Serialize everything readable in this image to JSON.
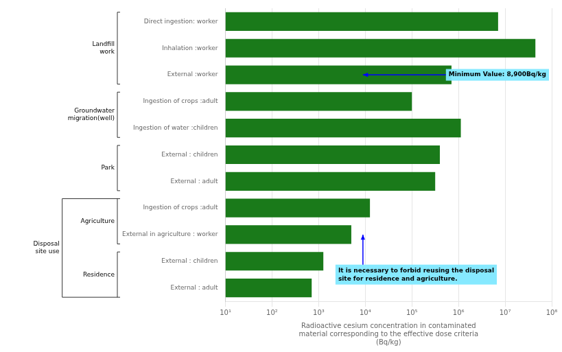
{
  "chart_data": {
    "type": "bar",
    "orientation": "horizontal",
    "categories": [
      "Direct ingestion: worker",
      "Inhalation :worker",
      "External :worker",
      "Ingestion of crops :adult",
      "Ingestion of water :children",
      "External : children",
      "External : adult",
      "Ingestion of crops :adult",
      "External in agriculture : worker",
      "External : children",
      "External : adult"
    ],
    "values": [
      7079457.8438,
      44668359.215,
      707945.78438,
      100000,
      1122018.4543,
      398107.17055,
      316227.76602,
      12589.254118,
      5011.8723363,
      1258.9254118,
      707.94578438
    ],
    "color": "#1a7a1a",
    "xlabel": "Radioactive cesium concentration in contaminated\nmaterial corresponding to the effective dose criteria\n(Bq/kg)",
    "log": "x",
    "xlim": [
      10,
      100000000
    ],
    "xticks": [
      {
        "value": 10,
        "label": "10¹"
      },
      {
        "value": 100,
        "label": "10²"
      },
      {
        "value": 1000,
        "label": "10³"
      },
      {
        "value": 10000,
        "label": "10⁴"
      },
      {
        "value": 100000,
        "label": "10⁵"
      },
      {
        "value": 1000000,
        "label": "10⁶"
      },
      {
        "value": 10000000,
        "label": "10⁷"
      },
      {
        "value": 100000000,
        "label": "10⁸"
      }
    ],
    "grid": true,
    "annotations": [
      {
        "text": "Minimum Value: 8,900Bq/kg",
        "x": 8900,
        "row": 2
      },
      {
        "text": "It is necessary to forbid reusing the disposal\nsite for residence and agriculture.",
        "x": 8900,
        "row": 8
      },
      {
        "text": "Landfill\nwork",
        "rows": [
          0,
          2
        ]
      },
      {
        "text": "Groundwater\nmigration(well)",
        "rows": [
          3,
          4
        ]
      },
      {
        "text": "Park",
        "rows": [
          5,
          6
        ]
      },
      {
        "text": "Agriculture",
        "rows": [
          7,
          8
        ]
      },
      {
        "text": "Residence",
        "rows": [
          9,
          10
        ]
      },
      {
        "text": "Disposal\nsite use",
        "rows": [
          7,
          10
        ]
      }
    ]
  }
}
